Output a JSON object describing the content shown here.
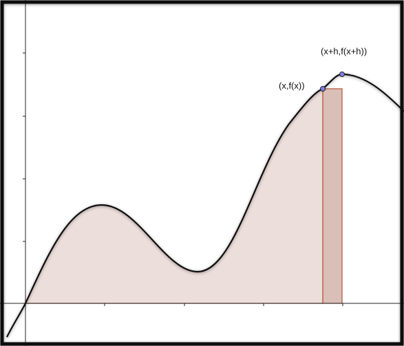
{
  "points": [
    {
      "label": "(x,f(x))"
    },
    {
      "label": "(x+h,f(x+h))"
    }
  ]
}
